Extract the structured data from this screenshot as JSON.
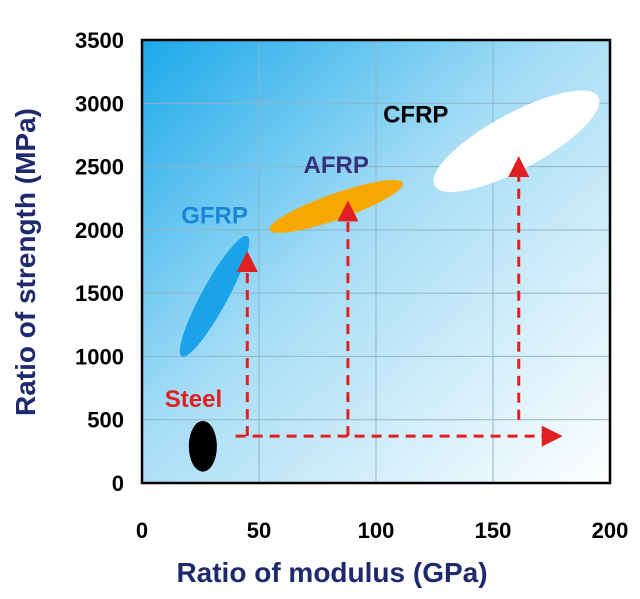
{
  "chart_data": {
    "type": "scatter",
    "title": "",
    "xlabel": "Ratio of modulus (GPa)",
    "ylabel": "Ratio of strength (MPa)",
    "xlim": [
      0,
      200
    ],
    "ylim": [
      0,
      3500
    ],
    "xticks": [
      0,
      50,
      100,
      150,
      200
    ],
    "yticks": [
      0,
      500,
      1000,
      1500,
      2000,
      2500,
      3000,
      3500
    ],
    "grid": true,
    "regions": [
      {
        "name": "Steel",
        "label": "Steel",
        "color": "#000000",
        "label_color": "#e02020",
        "x_range": [
          20,
          32
        ],
        "y_range": [
          100,
          500
        ],
        "center": [
          26,
          290
        ],
        "label_anchor": [
          22,
          600
        ]
      },
      {
        "name": "GFRP",
        "label": "GFRP",
        "color": "#1aa3e8",
        "label_color": "#1a86d6",
        "x_range": [
          17,
          45
        ],
        "y_range": [
          1000,
          1950
        ],
        "center": [
          31,
          1475
        ],
        "label_anchor": [
          31,
          2050
        ]
      },
      {
        "name": "AFRP",
        "label": "AFRP",
        "color": "#f7a800",
        "label_color": "#3a2f7a",
        "x_range": [
          55,
          112
        ],
        "y_range": [
          2000,
          2370
        ],
        "center": [
          83,
          2185
        ],
        "label_anchor": [
          83,
          2450
        ]
      },
      {
        "name": "CFRP",
        "label": "CFRP",
        "color": "#ffffff",
        "label_color": "#000000",
        "x_range": [
          125,
          195
        ],
        "y_range": [
          2350,
          3050
        ],
        "center": [
          160,
          2700
        ],
        "label_anchor": [
          117,
          2850
        ]
      }
    ],
    "arrows": [
      {
        "from": [
          40,
          370
        ],
        "to": [
          178,
          370
        ],
        "color": "#e02020",
        "style": "dashed"
      },
      {
        "from": [
          45,
          370
        ],
        "to": [
          45,
          1800
        ],
        "color": "#e02020",
        "style": "dashed"
      },
      {
        "from": [
          88,
          370
        ],
        "to": [
          88,
          2200
        ],
        "color": "#e02020",
        "style": "dashed"
      },
      {
        "from": [
          161,
          500
        ],
        "to": [
          161,
          2550
        ],
        "color": "#e02020",
        "style": "dashed"
      }
    ]
  }
}
